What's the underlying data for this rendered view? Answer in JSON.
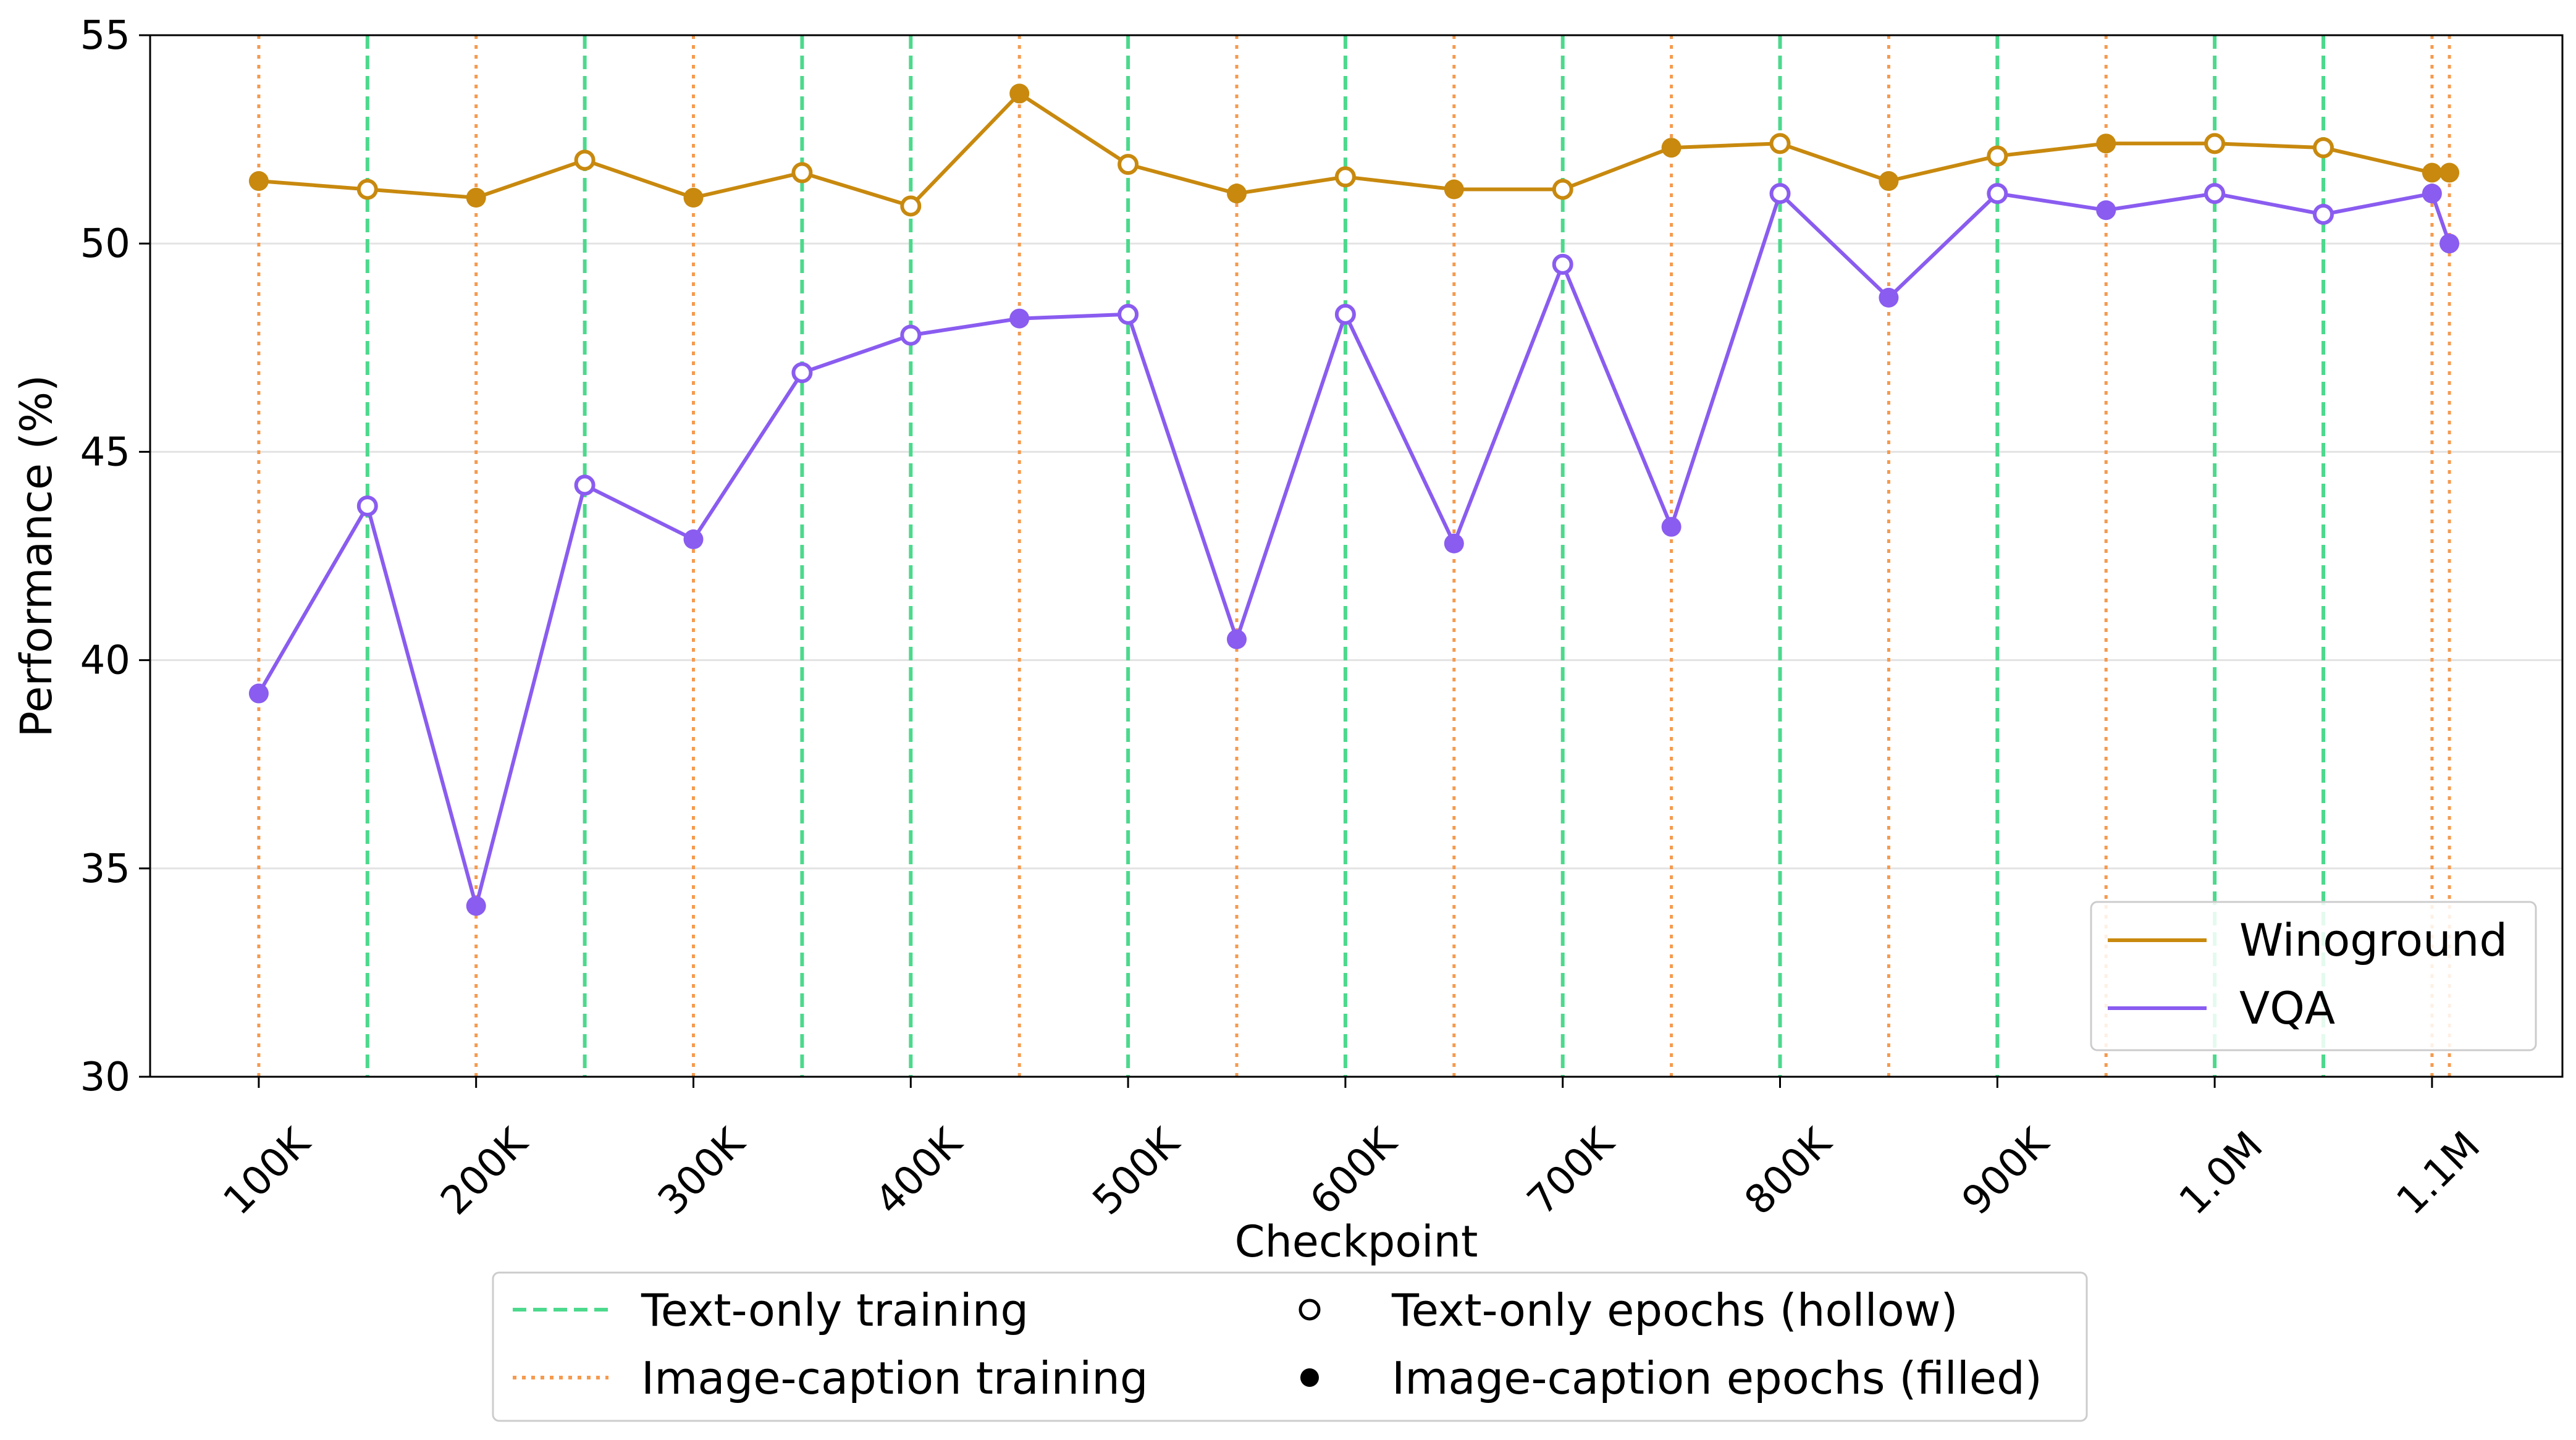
{
  "chart_data": {
    "type": "line",
    "title": "",
    "xlabel": "Checkpoint",
    "ylabel": "Performance (%)",
    "ylim": [
      30,
      55
    ],
    "xlim": [
      50,
      1160
    ],
    "yticks": [
      30,
      35,
      40,
      45,
      50,
      55
    ],
    "xticks": [
      {
        "value": 100,
        "label": "100K"
      },
      {
        "value": 200,
        "label": "200K"
      },
      {
        "value": 300,
        "label": "300K"
      },
      {
        "value": 400,
        "label": "400K"
      },
      {
        "value": 500,
        "label": "500K"
      },
      {
        "value": 600,
        "label": "600K"
      },
      {
        "value": 700,
        "label": "700K"
      },
      {
        "value": 800,
        "label": "800K"
      },
      {
        "value": 900,
        "label": "900K"
      },
      {
        "value": 1000,
        "label": "1.0M"
      },
      {
        "value": 1100,
        "label": "1.1M"
      }
    ],
    "x_unit": "K steps",
    "grid": "horizontal",
    "x": [
      100,
      150,
      200,
      250,
      300,
      350,
      400,
      450,
      500,
      550,
      600,
      650,
      700,
      750,
      800,
      850,
      900,
      950,
      1000,
      1050,
      1100,
      1108
    ],
    "filled": [
      true,
      false,
      true,
      false,
      true,
      false,
      false,
      true,
      false,
      true,
      false,
      true,
      false,
      true,
      false,
      true,
      false,
      true,
      false,
      false,
      true,
      true
    ],
    "series": [
      {
        "name": "Winoground",
        "color": "#c8890e",
        "values": [
          51.5,
          51.3,
          51.1,
          52.0,
          51.1,
          51.7,
          50.9,
          53.6,
          51.9,
          51.2,
          51.6,
          51.3,
          51.3,
          52.3,
          52.4,
          51.5,
          52.1,
          52.4,
          52.4,
          52.3,
          51.7,
          51.7
        ]
      },
      {
        "name": "VQA",
        "color": "#8a5cf0",
        "values": [
          39.2,
          43.7,
          34.1,
          44.2,
          42.9,
          46.9,
          47.8,
          48.2,
          48.3,
          40.5,
          48.3,
          42.8,
          49.5,
          43.2,
          51.2,
          48.7,
          51.2,
          50.8,
          51.2,
          50.7,
          51.2,
          50.0
        ]
      }
    ],
    "vlines": {
      "text_only": [
        150,
        250,
        350,
        400,
        500,
        600,
        700,
        800,
        900,
        1000,
        1050
      ],
      "image_caption": [
        100,
        200,
        300,
        450,
        550,
        650,
        750,
        850,
        950,
        1100,
        1108
      ]
    },
    "legend_inner": {
      "placement": "lower-right",
      "entries": [
        "Winoground",
        "VQA"
      ]
    },
    "legend_outer": {
      "placement": "bottom-center",
      "text_only_line": {
        "label": "Text-only training",
        "color": "#4cd98c"
      },
      "image_caption_line": {
        "label": "Image-caption training",
        "color": "#f59a4e"
      },
      "hollow_marker": {
        "label": "Text-only epochs (hollow)"
      },
      "filled_marker": {
        "label": "Image-caption epochs (filled)"
      }
    }
  }
}
